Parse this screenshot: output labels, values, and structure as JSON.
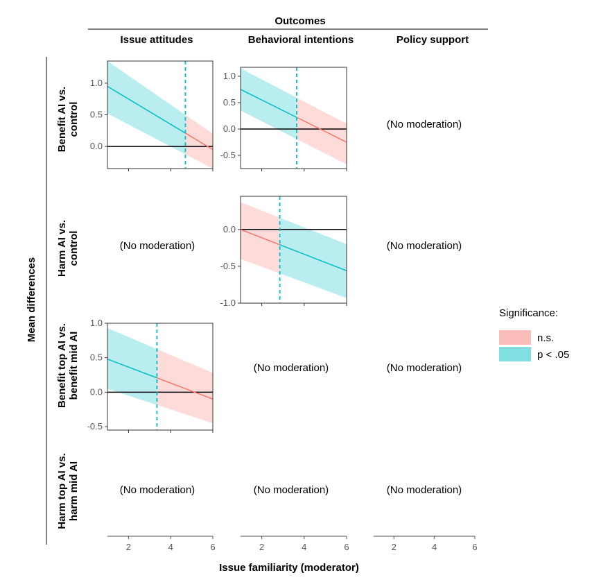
{
  "chart_data": {
    "type": "line",
    "title": "Outcomes",
    "columns": [
      "Issue attitudes",
      "Behavioral intentions",
      "Policy support"
    ],
    "rows": [
      "Benefit AI vs. control",
      "Harm AI vs. control",
      "Benefit top AI vs. benefit mid AI",
      "Harm top AI vs. harm mid AI"
    ],
    "row_label_lines": [
      [
        "Benefit AI vs.",
        "control"
      ],
      [
        "Harm AI vs.",
        "control"
      ],
      [
        "Benefit top AI vs.",
        "benefit mid AI"
      ],
      [
        "Harm top AI vs.",
        "harm mid AI"
      ]
    ],
    "ylabel": "Mean differences",
    "xlabel": "Issue familiarity (moderator)",
    "xlim": [
      1,
      6
    ],
    "xticks": [
      2,
      4,
      6
    ],
    "no_moderation_text": "(No moderation)",
    "legend": {
      "title": "Significance:",
      "items": [
        {
          "label": "n.s.",
          "color": "#F8766D",
          "fill": "#FBBDBA"
        },
        {
          "label": "p < .05",
          "color": "#00BFC4",
          "fill": "#7FDFE1"
        }
      ]
    },
    "panels": [
      {
        "row": 0,
        "col": 0,
        "jn_point": 4.7,
        "ylim": [
          -0.35,
          1.35
        ],
        "yticks": [
          0.0,
          0.5,
          1.0
        ],
        "ytick_labels": [
          "0.0",
          "0.5",
          "1.0"
        ],
        "x": [
          1,
          6
        ],
        "estimate": [
          0.95,
          -0.05
        ],
        "ci_lower": [
          0.52,
          -0.35
        ],
        "ci_upper": [
          1.35,
          0.2
        ]
      },
      {
        "row": 0,
        "col": 1,
        "jn_point": 3.65,
        "ylim": [
          -0.75,
          1.17
        ],
        "yticks": [
          -0.5,
          0.0,
          0.5,
          1.0
        ],
        "ytick_labels": [
          "-0.5",
          "0.0",
          "0.5",
          "1.0"
        ],
        "x": [
          1,
          6
        ],
        "estimate": [
          0.75,
          -0.25
        ],
        "ci_lower": [
          0.35,
          -0.67
        ],
        "ci_upper": [
          1.15,
          0.1
        ]
      },
      {
        "row": 0,
        "col": 2,
        "moderated": false
      },
      {
        "row": 1,
        "col": 0,
        "moderated": false
      },
      {
        "row": 1,
        "col": 1,
        "jn_point": 2.85,
        "ylim": [
          -1.0,
          0.45
        ],
        "yticks": [
          -1.0,
          -0.5,
          0.0
        ],
        "ytick_labels": [
          "-1.0",
          "-0.5",
          "0.0"
        ],
        "x": [
          1,
          6
        ],
        "estimate": [
          0.0,
          -0.56
        ],
        "ci_lower": [
          -0.4,
          -0.93
        ],
        "ci_upper": [
          0.37,
          -0.2
        ]
      },
      {
        "row": 1,
        "col": 2,
        "moderated": false
      },
      {
        "row": 2,
        "col": 0,
        "jn_point": 3.35,
        "ylim": [
          -0.55,
          1.0
        ],
        "yticks": [
          -0.5,
          0.0,
          0.5,
          1.0
        ],
        "ytick_labels": [
          "-0.5",
          "0.0",
          "0.5",
          "1.0"
        ],
        "x": [
          1,
          6
        ],
        "estimate": [
          0.48,
          -0.1
        ],
        "ci_lower": [
          0.05,
          -0.45
        ],
        "ci_upper": [
          0.93,
          0.28
        ]
      },
      {
        "row": 2,
        "col": 1,
        "moderated": false
      },
      {
        "row": 2,
        "col": 2,
        "moderated": false
      },
      {
        "row": 3,
        "col": 0,
        "moderated": false
      },
      {
        "row": 3,
        "col": 1,
        "moderated": false
      },
      {
        "row": 3,
        "col": 2,
        "moderated": false
      }
    ]
  }
}
